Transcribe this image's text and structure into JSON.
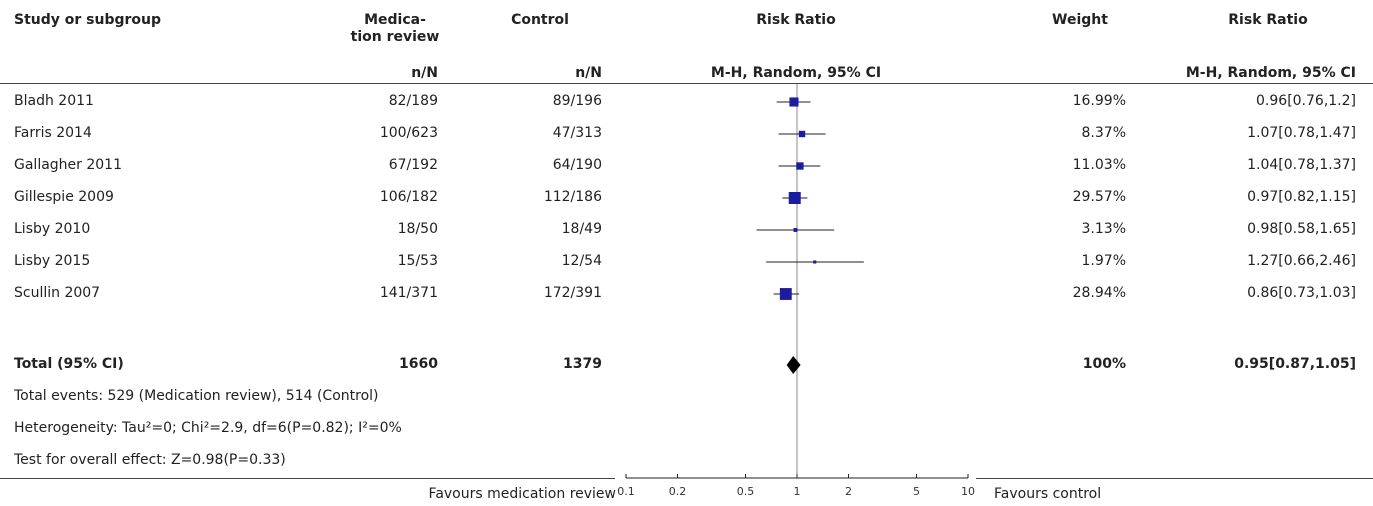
{
  "headers": {
    "study": "Study or subgroup",
    "exp": "Medica-\ntion review",
    "ctrl": "Control",
    "rr_plot": "Risk Ratio",
    "weight": "Weight",
    "rr_text": "Risk Ratio",
    "exp_sub": "n/N",
    "ctrl_sub": "n/N",
    "plot_sub": "M-H, Random, 95% CI",
    "rr_text_sub": "M-H, Random, 95% CI"
  },
  "studies": [
    {
      "name": "Bladh 2011",
      "exp": "82/189",
      "ctrl": "89/196",
      "weight": "16.99%",
      "rr_text": "0.96[0.76,1.2]"
    },
    {
      "name": "Farris 2014",
      "exp": "100/623",
      "ctrl": "47/313",
      "weight": "8.37%",
      "rr_text": "1.07[0.78,1.47]"
    },
    {
      "name": "Gallagher 2011",
      "exp": "67/192",
      "ctrl": "64/190",
      "weight": "11.03%",
      "rr_text": "1.04[0.78,1.37]"
    },
    {
      "name": "Gillespie 2009",
      "exp": "106/182",
      "ctrl": "112/186",
      "weight": "29.57%",
      "rr_text": "0.97[0.82,1.15]"
    },
    {
      "name": "Lisby 2010",
      "exp": "18/50",
      "ctrl": "18/49",
      "weight": "3.13%",
      "rr_text": "0.98[0.58,1.65]"
    },
    {
      "name": "Lisby 2015",
      "exp": "15/53",
      "ctrl": "12/54",
      "weight": "1.97%",
      "rr_text": "1.27[0.66,2.46]"
    },
    {
      "name": "Scullin 2007",
      "exp": "141/371",
      "ctrl": "172/391",
      "weight": "28.94%",
      "rr_text": "0.86[0.73,1.03]"
    }
  ],
  "total": {
    "label": "Total (95% CI)",
    "exp": "1660",
    "ctrl": "1379",
    "weight": "100%",
    "rr_text": "0.95[0.87,1.05]"
  },
  "footnotes": {
    "events": "Total events: 529 (Medication review), 514 (Control)",
    "heterogeneity": "Heterogeneity: Tau²=0; Chi²=2.9, df=6(P=0.82); I²=0%",
    "overall": "Test for overall effect: Z=0.98(P=0.33)"
  },
  "axis": {
    "favours_left": "Favours medication review",
    "favours_right": "Favours control"
  },
  "colors": {
    "marker": "#1c1c9e",
    "line": "#222222",
    "diamond": "#000000",
    "refline": "#888888"
  },
  "chart_data": {
    "type": "forest",
    "scale": "log",
    "xlim": [
      0.1,
      10
    ],
    "ticks": [
      0.1,
      0.2,
      0.5,
      1,
      2,
      5,
      10
    ],
    "tick_labels": [
      "0.1",
      "0.2",
      "0.5",
      "1",
      "2",
      "5",
      "10"
    ],
    "reference": 1,
    "estimates": [
      {
        "study": "Bladh 2011",
        "rr": 0.96,
        "lo": 0.76,
        "hi": 1.2,
        "weight": 16.99
      },
      {
        "study": "Farris 2014",
        "rr": 1.07,
        "lo": 0.78,
        "hi": 1.47,
        "weight": 8.37
      },
      {
        "study": "Gallagher 2011",
        "rr": 1.04,
        "lo": 0.78,
        "hi": 1.37,
        "weight": 11.03
      },
      {
        "study": "Gillespie 2009",
        "rr": 0.97,
        "lo": 0.82,
        "hi": 1.15,
        "weight": 29.57
      },
      {
        "study": "Lisby 2010",
        "rr": 0.98,
        "lo": 0.58,
        "hi": 1.65,
        "weight": 3.13
      },
      {
        "study": "Lisby 2015",
        "rr": 1.27,
        "lo": 0.66,
        "hi": 2.46,
        "weight": 1.97
      },
      {
        "study": "Scullin 2007",
        "rr": 0.86,
        "lo": 0.73,
        "hi": 1.03,
        "weight": 28.94
      }
    ],
    "pooled": {
      "rr": 0.95,
      "lo": 0.87,
      "hi": 1.05
    }
  }
}
